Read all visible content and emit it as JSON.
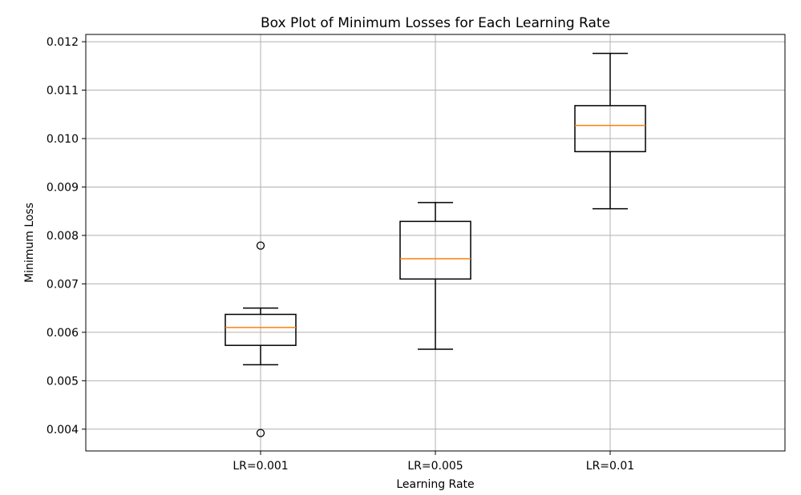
{
  "chart_data": {
    "type": "box",
    "title": "Box Plot of Minimum Losses for Each Learning Rate",
    "xlabel": "Learning Rate",
    "ylabel": "Minimum Loss",
    "ylim": [
      0.00355,
      0.01215
    ],
    "yticks": [
      "0.004",
      "0.005",
      "0.006",
      "0.007",
      "0.008",
      "0.009",
      "0.010",
      "0.011",
      "0.012"
    ],
    "ytick_values": [
      0.004,
      0.005,
      0.006,
      0.007,
      0.008,
      0.009,
      0.01,
      0.011,
      0.012
    ],
    "grid": true,
    "categories": [
      "LR=0.001",
      "LR=0.005",
      "LR=0.01"
    ],
    "boxes": [
      {
        "category": "LR=0.001",
        "whisker_low": 0.00533,
        "q1": 0.00573,
        "median": 0.0061,
        "q3": 0.00637,
        "whisker_high": 0.0065,
        "outliers": [
          0.00392,
          0.00779
        ]
      },
      {
        "category": "LR=0.005",
        "whisker_low": 0.00565,
        "q1": 0.0071,
        "median": 0.00752,
        "q3": 0.00829,
        "whisker_high": 0.00868,
        "outliers": []
      },
      {
        "category": "LR=0.01",
        "whisker_low": 0.00855,
        "q1": 0.00973,
        "median": 0.01027,
        "q3": 0.01068,
        "whisker_high": 0.01176,
        "outliers": []
      }
    ],
    "colors": {
      "box": "#000000",
      "median": "#ff7f0e",
      "grid": "#b0b0b0"
    }
  }
}
